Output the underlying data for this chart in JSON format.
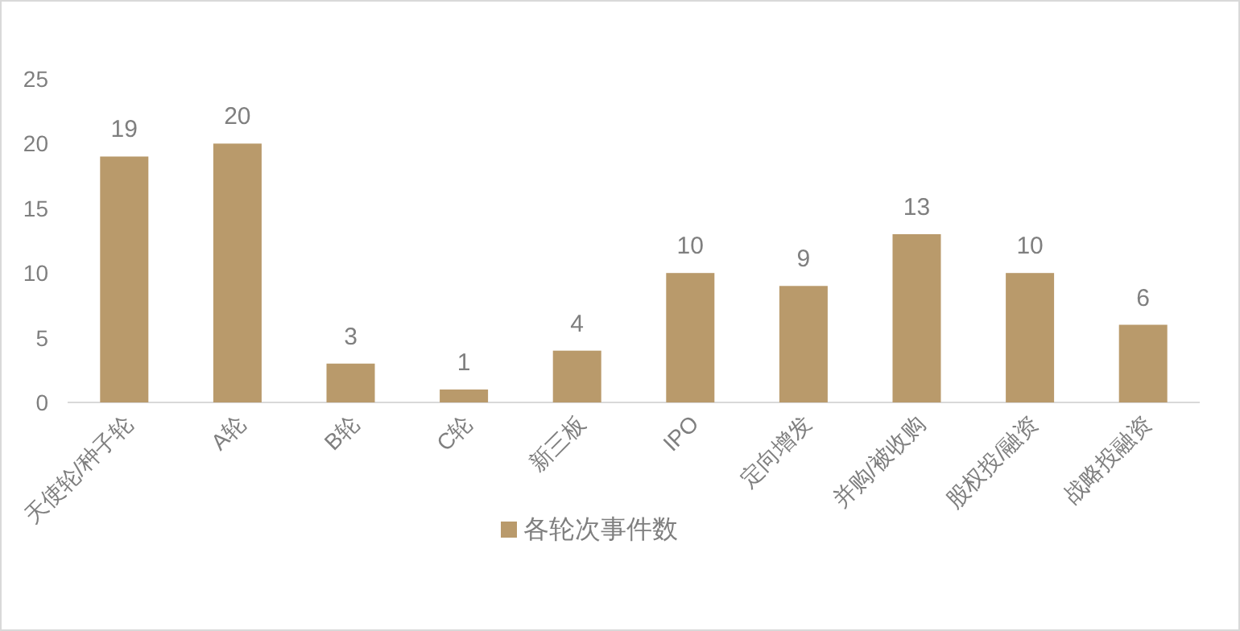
{
  "chart_data": {
    "type": "bar",
    "categories": [
      "天使轮/种子轮",
      "A轮",
      "B轮",
      "C轮",
      "新三板",
      "IPO",
      "定向增发",
      "并购/被收购",
      "股权投/融资",
      "战略投融资"
    ],
    "series": [
      {
        "name": "各轮次事件数",
        "color": "#b99a6b",
        "values": [
          19,
          20,
          3,
          1,
          4,
          10,
          9,
          13,
          10,
          6
        ]
      }
    ],
    "ylim": [
      0,
      25
    ],
    "yticks": [
      0,
      5,
      10,
      15,
      20,
      25
    ],
    "data_labels": true,
    "legend": "bottom"
  }
}
